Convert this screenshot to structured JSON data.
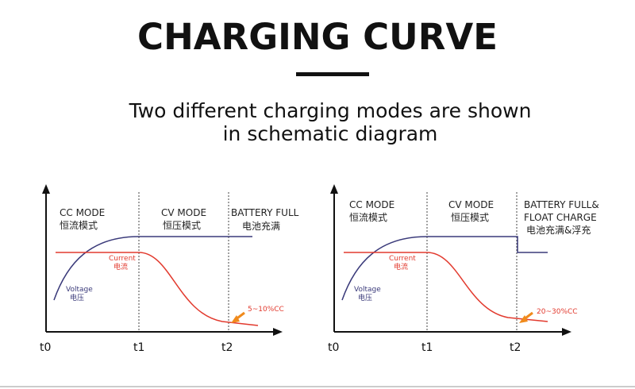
{
  "header": {
    "title": "CHARGING CURVE",
    "subtitle": [
      "Two different charging modes are shown",
      "in schematic diagram"
    ]
  },
  "panels": [
    {
      "modes": [
        {
          "label": "CC MODE",
          "sublabel": "恒流模式"
        },
        {
          "label": "CV MODE",
          "sublabel": "恒压模式"
        },
        {
          "label": "BATTERY FULL",
          "sublabel": "电池充满"
        }
      ],
      "times": [
        "t0",
        "t1",
        "t2"
      ],
      "current": {
        "label": "Current",
        "sublabel": "电流"
      },
      "voltage": {
        "label": "Voltage",
        "sublabel": "电压"
      },
      "end_current": "5~10%CC"
    },
    {
      "modes": [
        {
          "label": "CC MODE",
          "sublabel": "恒流模式"
        },
        {
          "label": "CV MODE",
          "sublabel": "恒压模式"
        },
        {
          "label": "BATTERY FULL&",
          "label2": "FLOAT CHARGE",
          "sublabel": "电池充满&浮充"
        }
      ],
      "times": [
        "t0",
        "t1",
        "t2"
      ],
      "current": {
        "label": "Current",
        "sublabel": "电流"
      },
      "voltage": {
        "label": "Voltage",
        "sublabel": "电压"
      },
      "end_current": "20~30%CC"
    }
  ]
}
